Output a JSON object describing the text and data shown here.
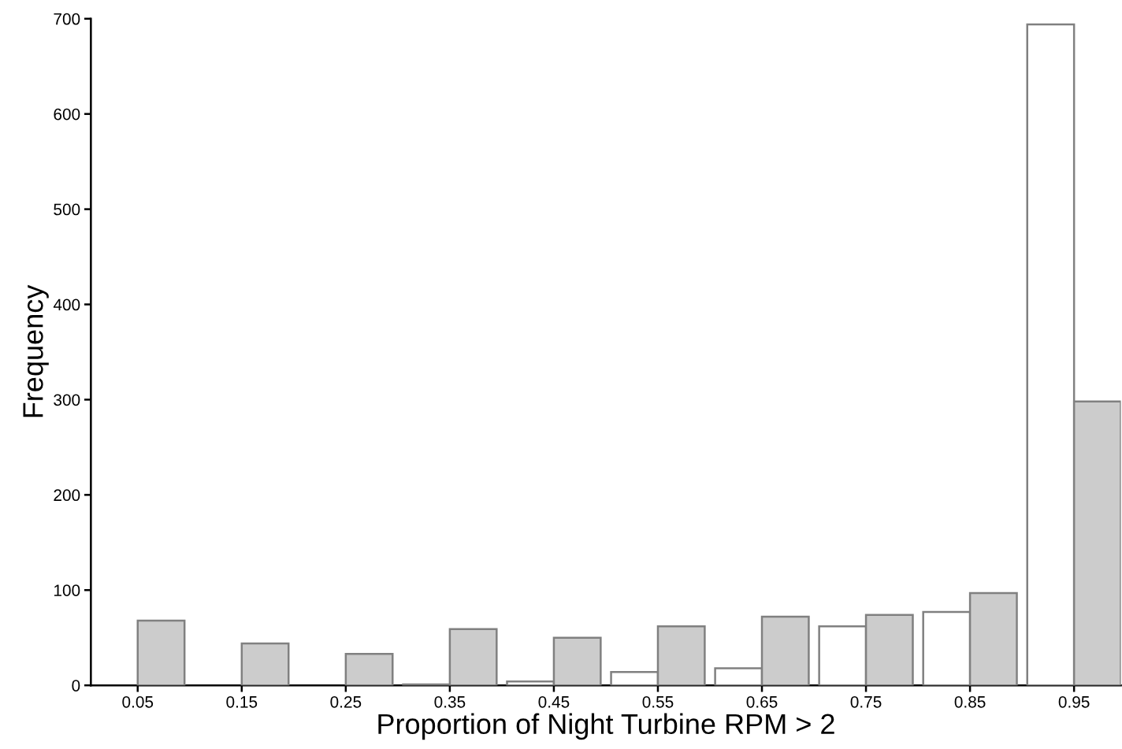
{
  "chart_data": {
    "type": "bar",
    "xlabel": "Proportion of Night Turbine RPM > 2",
    "ylabel": "Frequency",
    "categories": [
      "0.05",
      "0.15",
      "0.25",
      "0.35",
      "0.45",
      "0.55",
      "0.65",
      "0.75",
      "0.85",
      "0.95"
    ],
    "series": [
      {
        "color": "#ffffff",
        "values": [
          0,
          0,
          0,
          1,
          4,
          14,
          18,
          62,
          77,
          694
        ]
      },
      {
        "color": "#cccccc",
        "values": [
          68,
          44,
          33,
          59,
          50,
          62,
          72,
          74,
          97,
          298
        ]
      }
    ],
    "ylim": [
      0,
      700
    ],
    "yticks": [
      0,
      100,
      200,
      300,
      400,
      500,
      600,
      700
    ],
    "grid": false,
    "legend": false
  }
}
